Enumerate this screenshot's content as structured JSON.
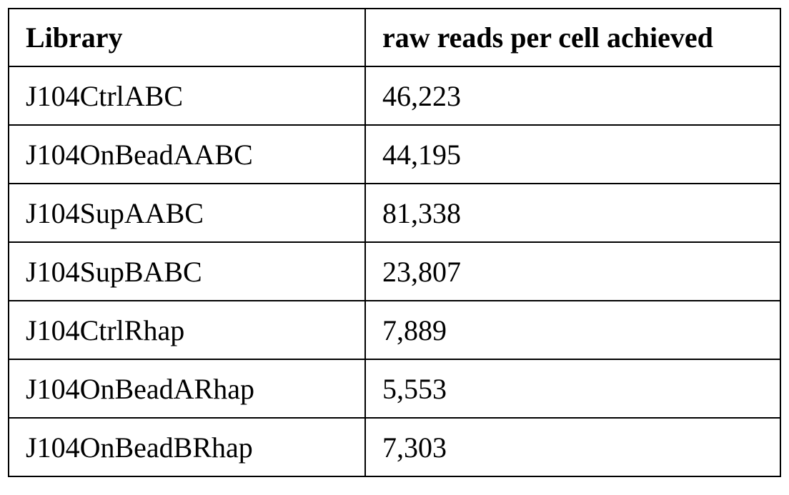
{
  "table": {
    "header": [
      "Library",
      "raw reads per cell achieved"
    ],
    "rows": [
      [
        "J104CtrlABC",
        "46,223"
      ],
      [
        "J104OnBeadAABC",
        "44,195"
      ],
      [
        "J104SupAABC",
        "81,338"
      ],
      [
        "J104SupBABC",
        "23,807"
      ],
      [
        "J104CtrlRhap",
        "7,889"
      ],
      [
        "J104OnBeadARhap",
        "5,553"
      ],
      [
        "J104OnBeadBRhap",
        "7,303"
      ]
    ]
  }
}
